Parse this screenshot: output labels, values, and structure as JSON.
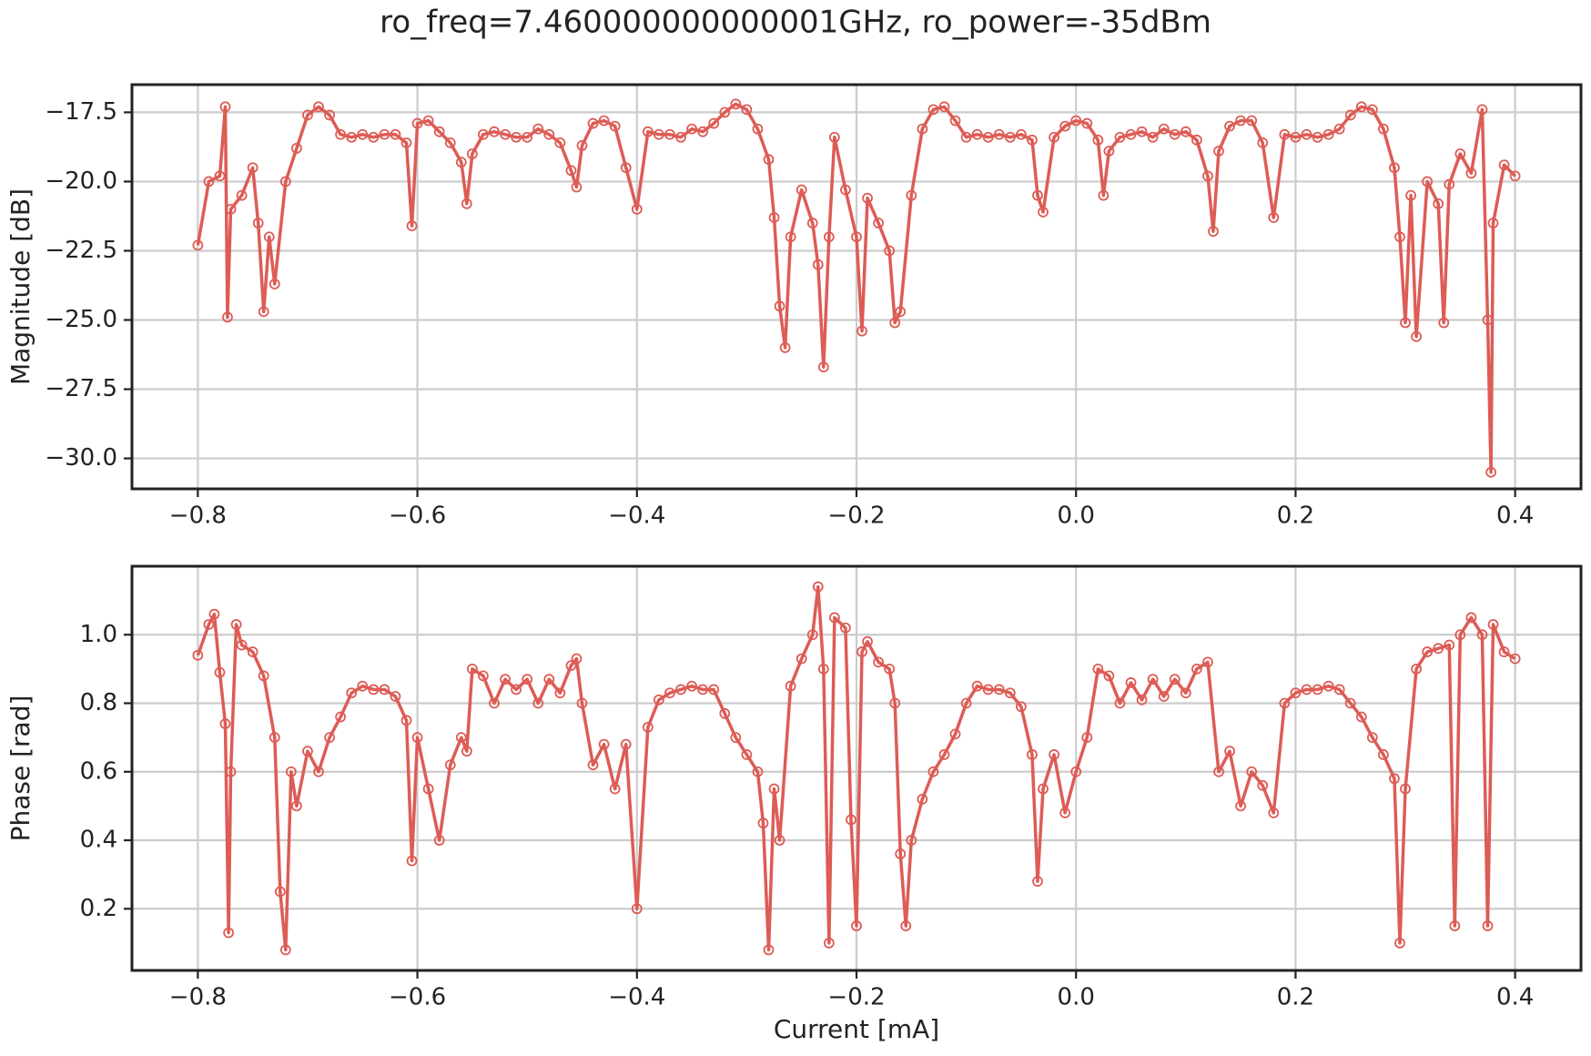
{
  "title": "ro_freq=7.460000000000001GHz, ro_power=-35dBm",
  "chart_data": [
    {
      "type": "line",
      "ylabel": "Magnitude [dB]",
      "grid": true,
      "marker": "open-circle",
      "xlim": [
        -0.86,
        0.46
      ],
      "ylim": [
        -31.1,
        -16.5
      ],
      "xticks": [
        {
          "value": -0.8,
          "label": "−0.8"
        },
        {
          "value": -0.6,
          "label": "−0.6"
        },
        {
          "value": -0.4,
          "label": "−0.4"
        },
        {
          "value": -0.2,
          "label": "−0.2"
        },
        {
          "value": 0,
          "label": "0.0"
        },
        0.2,
        0.4
      ],
      "yticks": [
        {
          "value": -30,
          "label": "−30.0"
        },
        {
          "value": -27.5,
          "label": "−27.5"
        },
        {
          "value": -25,
          "label": "−25.0"
        },
        {
          "value": -22.5,
          "label": "−22.5"
        },
        {
          "value": -20,
          "label": "−20.0"
        },
        {
          "value": -17.5,
          "label": "−17.5"
        }
      ],
      "series": [
        {
          "color": "#dd5c55",
          "x": [
            -0.8,
            -0.79,
            -0.78,
            -0.775,
            -0.773,
            -0.77,
            -0.76,
            -0.75,
            -0.745,
            -0.74,
            -0.735,
            -0.73,
            -0.72,
            -0.71,
            -0.7,
            -0.69,
            -0.68,
            -0.67,
            -0.66,
            -0.65,
            -0.64,
            -0.63,
            -0.62,
            -0.61,
            -0.605,
            -0.6,
            -0.59,
            -0.58,
            -0.57,
            -0.56,
            -0.555,
            -0.55,
            -0.54,
            -0.53,
            -0.52,
            -0.51,
            -0.5,
            -0.49,
            -0.48,
            -0.47,
            -0.46,
            -0.455,
            -0.45,
            -0.44,
            -0.43,
            -0.42,
            -0.41,
            -0.4,
            -0.39,
            -0.38,
            -0.37,
            -0.36,
            -0.35,
            -0.34,
            -0.33,
            -0.32,
            -0.31,
            -0.3,
            -0.29,
            -0.28,
            -0.275,
            -0.27,
            -0.265,
            -0.26,
            -0.25,
            -0.24,
            -0.235,
            -0.23,
            -0.225,
            -0.22,
            -0.21,
            -0.2,
            -0.195,
            -0.19,
            -0.18,
            -0.17,
            -0.165,
            -0.16,
            -0.15,
            -0.14,
            -0.13,
            -0.12,
            -0.11,
            -0.1,
            -0.09,
            -0.08,
            -0.07,
            -0.06,
            -0.05,
            -0.04,
            -0.035,
            -0.03,
            -0.02,
            -0.01,
            0,
            0.01,
            0.02,
            0.025,
            0.03,
            0.04,
            0.05,
            0.06,
            0.07,
            0.08,
            0.09,
            0.1,
            0.11,
            0.12,
            0.125,
            0.13,
            0.14,
            0.15,
            0.16,
            0.17,
            0.18,
            0.19,
            0.2,
            0.21,
            0.22,
            0.23,
            0.24,
            0.25,
            0.26,
            0.27,
            0.28,
            0.29,
            0.295,
            0.3,
            0.305,
            0.31,
            0.32,
            0.33,
            0.335,
            0.34,
            0.35,
            0.36,
            0.37,
            0.375,
            0.378,
            0.38,
            0.39,
            0.4
          ],
          "values": [
            -22.3,
            -20.0,
            -19.8,
            -17.3,
            -24.9,
            -21.0,
            -20.5,
            -19.5,
            -21.5,
            -24.7,
            -22.0,
            -23.7,
            -20.0,
            -18.8,
            -17.6,
            -17.3,
            -17.6,
            -18.3,
            -18.4,
            -18.3,
            -18.4,
            -18.3,
            -18.3,
            -18.6,
            -21.6,
            -17.9,
            -17.8,
            -18.2,
            -18.6,
            -19.3,
            -20.8,
            -19.0,
            -18.3,
            -18.2,
            -18.3,
            -18.4,
            -18.4,
            -18.1,
            -18.3,
            -18.6,
            -19.6,
            -20.2,
            -18.7,
            -17.9,
            -17.8,
            -18.0,
            -19.5,
            -21.0,
            -18.2,
            -18.3,
            -18.3,
            -18.4,
            -18.1,
            -18.2,
            -17.9,
            -17.5,
            -17.2,
            -17.4,
            -18.1,
            -19.2,
            -21.3,
            -24.5,
            -26.0,
            -22.0,
            -20.3,
            -21.5,
            -23.0,
            -26.7,
            -22.0,
            -18.4,
            -20.3,
            -22.0,
            -25.4,
            -20.6,
            -21.5,
            -22.5,
            -25.1,
            -24.7,
            -20.5,
            -18.1,
            -17.4,
            -17.3,
            -17.8,
            -18.4,
            -18.3,
            -18.4,
            -18.3,
            -18.4,
            -18.3,
            -18.5,
            -20.5,
            -21.1,
            -18.4,
            -18.0,
            -17.8,
            -17.9,
            -18.5,
            -20.5,
            -18.9,
            -18.4,
            -18.3,
            -18.2,
            -18.4,
            -18.1,
            -18.3,
            -18.2,
            -18.5,
            -19.8,
            -21.8,
            -18.9,
            -18.0,
            -17.8,
            -17.8,
            -18.6,
            -21.3,
            -18.3,
            -18.4,
            -18.3,
            -18.4,
            -18.3,
            -18.1,
            -17.6,
            -17.3,
            -17.4,
            -18.1,
            -19.5,
            -22.0,
            -25.1,
            -20.5,
            -25.6,
            -20.0,
            -20.8,
            -25.1,
            -20.1,
            -19.0,
            -19.7,
            -17.4,
            -25.0,
            -30.5,
            -21.5,
            -19.4,
            -19.8
          ]
        }
      ]
    },
    {
      "type": "line",
      "xlabel": "Current [mA]",
      "ylabel": "Phase [rad]",
      "grid": true,
      "marker": "open-circle",
      "xlim": [
        -0.86,
        0.46
      ],
      "ylim": [
        0.02,
        1.2
      ],
      "xticks": [
        {
          "value": -0.8,
          "label": "−0.8"
        },
        {
          "value": -0.6,
          "label": "−0.6"
        },
        {
          "value": -0.4,
          "label": "−0.4"
        },
        {
          "value": -0.2,
          "label": "−0.2"
        },
        {
          "value": 0,
          "label": "0.0"
        },
        0.2,
        0.4
      ],
      "yticks": [
        0.2,
        0.4,
        0.6,
        0.8,
        {
          "value": 1,
          "label": "1.0"
        }
      ],
      "series": [
        {
          "color": "#dd5c55",
          "x": [
            -0.8,
            -0.79,
            -0.785,
            -0.78,
            -0.775,
            -0.772,
            -0.77,
            -0.765,
            -0.76,
            -0.75,
            -0.74,
            -0.73,
            -0.725,
            -0.72,
            -0.715,
            -0.71,
            -0.7,
            -0.69,
            -0.68,
            -0.67,
            -0.66,
            -0.65,
            -0.64,
            -0.63,
            -0.62,
            -0.61,
            -0.605,
            -0.6,
            -0.59,
            -0.58,
            -0.57,
            -0.56,
            -0.555,
            -0.55,
            -0.54,
            -0.53,
            -0.52,
            -0.51,
            -0.5,
            -0.49,
            -0.48,
            -0.47,
            -0.46,
            -0.455,
            -0.45,
            -0.44,
            -0.43,
            -0.42,
            -0.41,
            -0.4,
            -0.39,
            -0.38,
            -0.37,
            -0.36,
            -0.35,
            -0.34,
            -0.33,
            -0.32,
            -0.31,
            -0.3,
            -0.29,
            -0.285,
            -0.28,
            -0.275,
            -0.27,
            -0.26,
            -0.25,
            -0.24,
            -0.235,
            -0.23,
            -0.225,
            -0.22,
            -0.21,
            -0.205,
            -0.2,
            -0.195,
            -0.19,
            -0.18,
            -0.17,
            -0.165,
            -0.16,
            -0.155,
            -0.15,
            -0.14,
            -0.13,
            -0.12,
            -0.11,
            -0.1,
            -0.09,
            -0.08,
            -0.07,
            -0.06,
            -0.05,
            -0.04,
            -0.035,
            -0.03,
            -0.02,
            -0.01,
            0,
            0.01,
            0.02,
            0.03,
            0.04,
            0.05,
            0.06,
            0.07,
            0.08,
            0.09,
            0.1,
            0.11,
            0.12,
            0.13,
            0.14,
            0.15,
            0.16,
            0.17,
            0.18,
            0.19,
            0.2,
            0.21,
            0.22,
            0.23,
            0.24,
            0.25,
            0.26,
            0.27,
            0.28,
            0.29,
            0.295,
            0.3,
            0.31,
            0.32,
            0.33,
            0.34,
            0.345,
            0.35,
            0.36,
            0.37,
            0.375,
            0.38,
            0.39,
            0.4
          ],
          "values": [
            0.94,
            1.03,
            1.06,
            0.89,
            0.74,
            0.13,
            0.6,
            1.03,
            0.97,
            0.95,
            0.88,
            0.7,
            0.25,
            0.08,
            0.6,
            0.5,
            0.66,
            0.6,
            0.7,
            0.76,
            0.83,
            0.85,
            0.84,
            0.84,
            0.82,
            0.75,
            0.34,
            0.7,
            0.55,
            0.4,
            0.62,
            0.7,
            0.66,
            0.9,
            0.88,
            0.8,
            0.87,
            0.84,
            0.87,
            0.8,
            0.87,
            0.83,
            0.91,
            0.93,
            0.8,
            0.62,
            0.68,
            0.55,
            0.68,
            0.2,
            0.73,
            0.81,
            0.83,
            0.84,
            0.85,
            0.84,
            0.84,
            0.77,
            0.7,
            0.65,
            0.6,
            0.45,
            0.08,
            0.55,
            0.4,
            0.85,
            0.93,
            1.0,
            1.14,
            0.9,
            0.1,
            1.05,
            1.02,
            0.46,
            0.15,
            0.95,
            0.98,
            0.92,
            0.9,
            0.8,
            0.36,
            0.15,
            0.4,
            0.52,
            0.6,
            0.65,
            0.71,
            0.8,
            0.85,
            0.84,
            0.84,
            0.83,
            0.79,
            0.65,
            0.28,
            0.55,
            0.65,
            0.48,
            0.6,
            0.7,
            0.9,
            0.88,
            0.8,
            0.86,
            0.81,
            0.87,
            0.82,
            0.87,
            0.83,
            0.9,
            0.92,
            0.6,
            0.66,
            0.5,
            0.6,
            0.56,
            0.48,
            0.8,
            0.83,
            0.84,
            0.84,
            0.85,
            0.84,
            0.8,
            0.76,
            0.7,
            0.65,
            0.58,
            0.1,
            0.55,
            0.9,
            0.95,
            0.96,
            0.97,
            0.15,
            1.0,
            1.05,
            1.0,
            0.15,
            1.03,
            0.95,
            0.93
          ]
        }
      ]
    }
  ]
}
